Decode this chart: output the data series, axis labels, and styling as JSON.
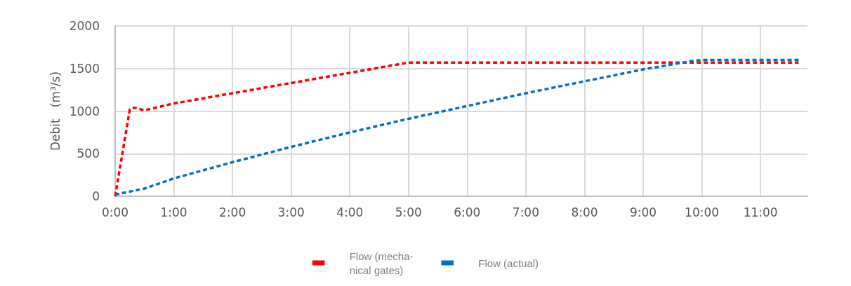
{
  "chart_data": {
    "type": "line",
    "ylabel": "Debit   (m³/s)",
    "xlim": [
      0,
      11.8
    ],
    "ylim": [
      0,
      2000
    ],
    "xticks": [
      {
        "value": 0,
        "label": "0:00"
      },
      {
        "value": 1,
        "label": "1:00"
      },
      {
        "value": 2,
        "label": "2:00"
      },
      {
        "value": 3,
        "label": "3:00"
      },
      {
        "value": 4,
        "label": "4:00"
      },
      {
        "value": 5,
        "label": "5:00"
      },
      {
        "value": 6,
        "label": "6:00"
      },
      {
        "value": 7,
        "label": "7:00"
      },
      {
        "value": 8,
        "label": "8:00"
      },
      {
        "value": 9,
        "label": "9:00"
      },
      {
        "value": 10,
        "label": "10:00"
      },
      {
        "value": 11,
        "label": "11:00"
      }
    ],
    "yticks": [
      0,
      500,
      1000,
      1500,
      2000
    ],
    "grid": true,
    "legend": "bottom",
    "marker": "none",
    "line_style": "dashed",
    "series": [
      {
        "name": "Flow (mecha-\nnical gates)",
        "color": "#ff0000",
        "x": [
          0,
          0.25,
          0.33,
          0.5,
          1,
          2,
          3,
          4,
          5,
          11.65
        ],
        "values": [
          0,
          1020,
          1040,
          1010,
          1090,
          1210,
          1330,
          1450,
          1570,
          1570
        ]
      },
      {
        "name": "Flow (actual)",
        "color": "#0070c0",
        "x": [
          0,
          0.5,
          1,
          2,
          3,
          4,
          5,
          6,
          7,
          8,
          9,
          9.85,
          10,
          11.65
        ],
        "values": [
          20,
          90,
          210,
          400,
          580,
          750,
          910,
          1060,
          1210,
          1350,
          1490,
          1590,
          1600,
          1600
        ]
      }
    ]
  }
}
